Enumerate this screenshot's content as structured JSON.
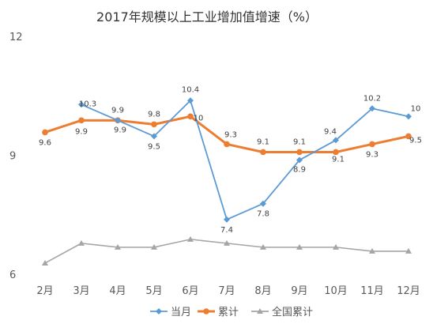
{
  "chart_data": {
    "type": "line",
    "title": "2017年规模以上工业增加值增速（%）",
    "categories": [
      "2月",
      "3月",
      "4月",
      "5月",
      "6月",
      "7月",
      "8月",
      "9月",
      "10月",
      "11月",
      "12月"
    ],
    "ylim": [
      6,
      12
    ],
    "yticks": [
      "6",
      "9",
      "12"
    ],
    "grid": false,
    "legend_position": "bottom",
    "series": [
      {
        "name": "当月",
        "color": "#5b9bd5",
        "marker": "diamond",
        "values": [
          null,
          10.3,
          9.9,
          9.5,
          10.4,
          7.4,
          7.8,
          8.9,
          9.4,
          10.2,
          10
        ],
        "labels": [
          "",
          "10.3",
          "9.9",
          "9.5",
          "10.4",
          "7.4",
          "7.8",
          "8.9",
          "9.4",
          "10.2",
          "10"
        ]
      },
      {
        "name": "累计",
        "color": "#ed7d31",
        "marker": "circle",
        "values": [
          9.6,
          9.9,
          9.9,
          9.8,
          10,
          9.3,
          9.1,
          9.1,
          9.1,
          9.3,
          9.5
        ],
        "labels": [
          "9.6",
          "9.9",
          "9.9",
          "9.8",
          "10",
          "9.3",
          "9.1",
          "9.1",
          "9.1",
          "9.3",
          "9.5"
        ]
      },
      {
        "name": "全国累计",
        "color": "#a5a5a5",
        "marker": "triangle",
        "values": [
          6.3,
          6.8,
          6.7,
          6.7,
          6.9,
          6.8,
          6.7,
          6.7,
          6.7,
          6.6,
          6.6
        ],
        "labels": []
      }
    ]
  }
}
